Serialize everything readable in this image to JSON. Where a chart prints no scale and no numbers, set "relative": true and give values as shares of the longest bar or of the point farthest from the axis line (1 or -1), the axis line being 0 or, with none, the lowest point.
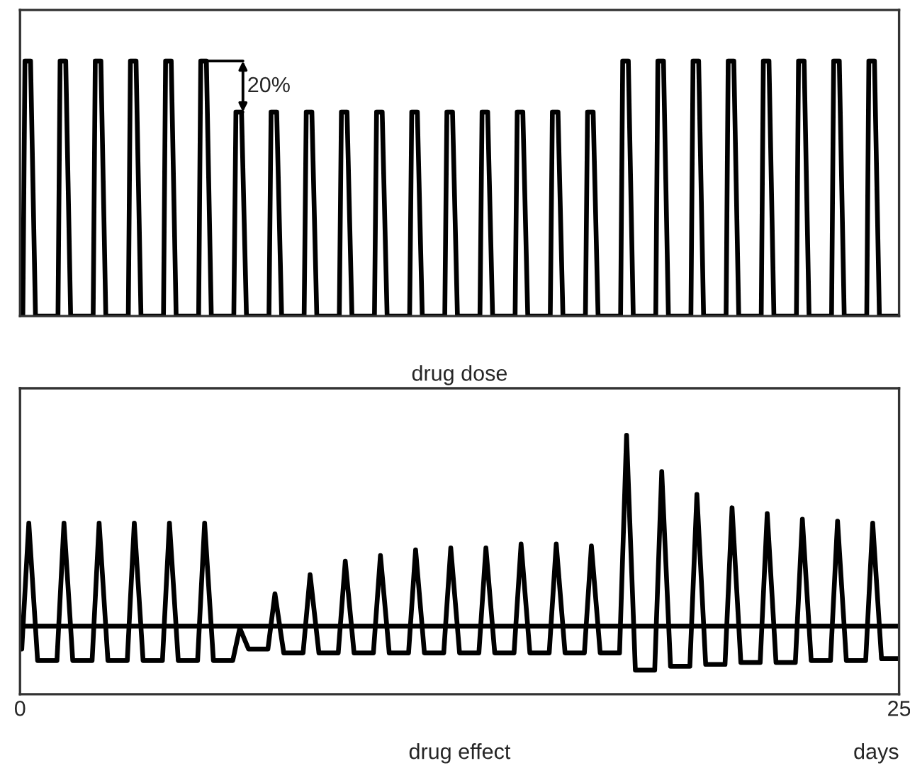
{
  "chart_data": [
    {
      "type": "line",
      "title": "drug dose",
      "relative": true,
      "xlim": [
        0,
        25
      ],
      "xticks": [
        0,
        25
      ],
      "tick_labels": false,
      "marker": "none",
      "line_style": "solid",
      "series": [
        {
          "color": "#000000",
          "x": [
            0,
            0.08,
            0.14,
            0.3,
            0.44,
            1.08,
            1.14,
            1.3,
            1.44,
            2.08,
            2.14,
            2.3,
            2.44,
            3.08,
            3.14,
            3.3,
            3.44,
            4.08,
            4.14,
            4.3,
            4.44,
            5.08,
            5.14,
            5.3,
            5.44,
            6.08,
            6.14,
            6.3,
            6.44,
            7.08,
            7.14,
            7.3,
            7.44,
            8.08,
            8.14,
            8.3,
            8.44,
            9.08,
            9.14,
            9.3,
            9.44,
            10.08,
            10.14,
            10.3,
            10.44,
            11.08,
            11.14,
            11.3,
            11.44,
            12.08,
            12.14,
            12.3,
            12.44,
            13.08,
            13.14,
            13.3,
            13.44,
            14.08,
            14.14,
            14.3,
            14.44,
            15.08,
            15.14,
            15.3,
            15.44,
            16.08,
            16.14,
            16.3,
            16.44,
            17.08,
            17.14,
            17.3,
            17.44,
            18.08,
            18.14,
            18.3,
            18.44,
            19.08,
            19.14,
            19.3,
            19.44,
            20.08,
            20.14,
            20.3,
            20.44,
            21.08,
            21.14,
            21.3,
            21.44,
            22.08,
            22.14,
            22.3,
            22.44,
            23.08,
            23.14,
            23.3,
            23.44,
            24.08,
            24.14,
            24.3,
            24.44,
            25
          ],
          "values": [
            0,
            0,
            1,
            1,
            0,
            0,
            1,
            1,
            0,
            0,
            1,
            1,
            0,
            0,
            1,
            1,
            0,
            0,
            1,
            1,
            0,
            0,
            1,
            1,
            0,
            0,
            0.8,
            0.8,
            0,
            0,
            0.8,
            0.8,
            0,
            0,
            0.8,
            0.8,
            0,
            0,
            0.8,
            0.8,
            0,
            0,
            0.8,
            0.8,
            0,
            0,
            0.8,
            0.8,
            0,
            0,
            0.8,
            0.8,
            0,
            0,
            0.8,
            0.8,
            0,
            0,
            0.8,
            0.8,
            0,
            0,
            0.8,
            0.8,
            0,
            0,
            0.8,
            0.8,
            0,
            0,
            1,
            1,
            0,
            0,
            1,
            1,
            0,
            0,
            1,
            1,
            0,
            0,
            1,
            1,
            0,
            0,
            1,
            1,
            0,
            0,
            1,
            1,
            0,
            0,
            1,
            1,
            0,
            0,
            1,
            1,
            0,
            0
          ]
        }
      ],
      "annotations": [
        "20%"
      ]
    },
    {
      "type": "line",
      "title": "drug effect",
      "xlabel": "days",
      "relative": true,
      "xlim": [
        0,
        25
      ],
      "xticks": [
        0,
        25
      ],
      "marker": "none",
      "line_style": "solid",
      "ref_lines": [
        {
          "axis": "y",
          "value": 0,
          "color": "#000000"
        }
      ],
      "series": [
        {
          "color": "#000000",
          "x": [
            0,
            0.05,
            0.25,
            0.5,
            0.95,
            1.05,
            1.25,
            1.5,
            1.95,
            2.05,
            2.25,
            2.5,
            2.95,
            3.05,
            3.25,
            3.5,
            3.95,
            4.05,
            4.25,
            4.5,
            4.95,
            5.05,
            5.25,
            5.5,
            5.95,
            6.05,
            6.25,
            6.5,
            6.95,
            7.05,
            7.25,
            7.5,
            7.95,
            8.05,
            8.25,
            8.5,
            8.95,
            9.05,
            9.25,
            9.5,
            9.95,
            10.05,
            10.25,
            10.5,
            10.95,
            11.05,
            11.25,
            11.5,
            11.95,
            12.05,
            12.25,
            12.5,
            12.95,
            13.05,
            13.25,
            13.5,
            13.95,
            14.05,
            14.25,
            14.5,
            14.95,
            15.05,
            15.25,
            15.5,
            15.95,
            16.05,
            16.25,
            16.5,
            16.95,
            17.05,
            17.25,
            17.5,
            17.95,
            18.05,
            18.25,
            18.5,
            18.95,
            19.05,
            19.25,
            19.5,
            19.95,
            20.05,
            20.25,
            20.5,
            20.95,
            21.05,
            21.25,
            21.5,
            21.95,
            22.05,
            22.25,
            22.5,
            22.95,
            23.05,
            23.25,
            23.5,
            23.95,
            24.05,
            24.25,
            24.5,
            25
          ],
          "values": [
            -0.12,
            -0.12,
            0.54,
            -0.18,
            -0.18,
            -0.18,
            0.54,
            -0.18,
            -0.18,
            -0.18,
            0.54,
            -0.18,
            -0.18,
            -0.18,
            0.54,
            -0.18,
            -0.18,
            -0.18,
            0.54,
            -0.18,
            -0.18,
            -0.18,
            0.54,
            -0.18,
            -0.18,
            -0.18,
            -0.01,
            -0.12,
            -0.12,
            -0.12,
            0.17,
            -0.14,
            -0.14,
            -0.14,
            0.27,
            -0.14,
            -0.14,
            -0.14,
            0.34,
            -0.14,
            -0.14,
            -0.14,
            0.37,
            -0.14,
            -0.14,
            -0.14,
            0.4,
            -0.14,
            -0.14,
            -0.14,
            0.41,
            -0.14,
            -0.14,
            -0.14,
            0.41,
            -0.14,
            -0.14,
            -0.14,
            0.43,
            -0.14,
            -0.14,
            -0.14,
            0.43,
            -0.14,
            -0.14,
            -0.14,
            0.42,
            -0.14,
            -0.14,
            -0.14,
            1.0,
            -0.23,
            -0.23,
            -0.23,
            0.81,
            -0.21,
            -0.21,
            -0.21,
            0.69,
            -0.2,
            -0.2,
            -0.2,
            0.62,
            -0.19,
            -0.19,
            -0.19,
            0.59,
            -0.19,
            -0.19,
            -0.19,
            0.56,
            -0.18,
            -0.18,
            -0.18,
            0.55,
            -0.18,
            -0.18,
            -0.18,
            0.54,
            -0.17,
            -0.17
          ]
        }
      ]
    }
  ]
}
